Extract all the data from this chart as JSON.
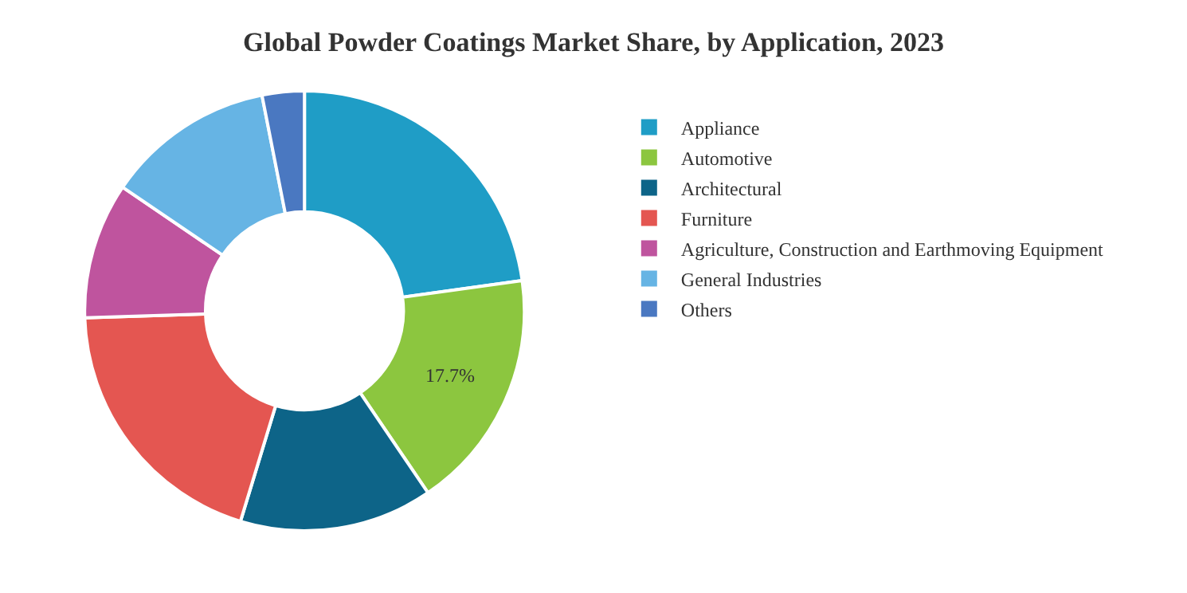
{
  "chart_data": {
    "type": "donut",
    "title": "Global Powder Coatings Market Share, by Application, 2023",
    "categories": [
      "Appliance",
      "Automotive",
      "Architectural",
      "Furniture",
      "Agriculture, Construction and Earthmoving Equipment",
      "General Industries",
      "Others"
    ],
    "values": [
      22.8,
      17.7,
      14.2,
      19.8,
      10.0,
      12.4,
      3.1
    ],
    "value_labels": [
      null,
      "17.7%",
      null,
      null,
      null,
      null,
      null
    ],
    "colors": [
      "#1f9dc6",
      "#8cc63f",
      "#0d6488",
      "#e45651",
      "#bf549e",
      "#66b4e4",
      "#4a78c1"
    ],
    "legend": "right"
  }
}
